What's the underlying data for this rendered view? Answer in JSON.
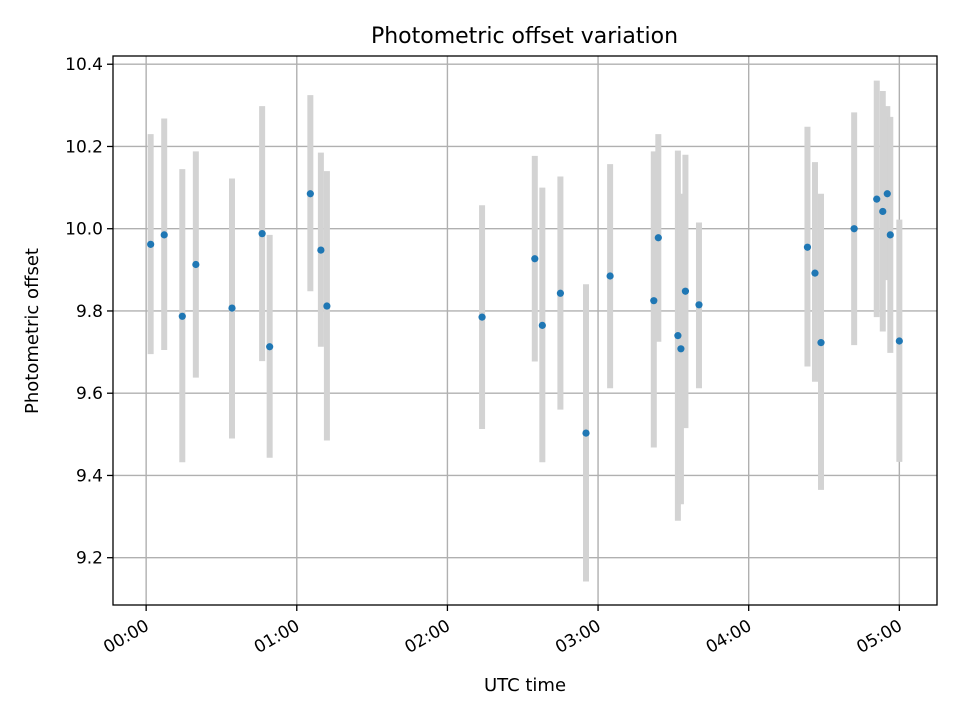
{
  "chart_data": {
    "type": "scatter",
    "title": "Photometric offset variation",
    "xlabel": "UTC time",
    "ylabel": "Photometric offset",
    "xlim": [
      -0.22,
      5.25
    ],
    "ylim": [
      9.085,
      10.42
    ],
    "grid": true,
    "x_ticks": [
      {
        "value": 0,
        "label": "00:00"
      },
      {
        "value": 1,
        "label": "01:00"
      },
      {
        "value": 2,
        "label": "02:00"
      },
      {
        "value": 3,
        "label": "03:00"
      },
      {
        "value": 4,
        "label": "04:00"
      },
      {
        "value": 5,
        "label": "05:00"
      }
    ],
    "y_ticks": [
      {
        "value": 9.2,
        "label": "9.2"
      },
      {
        "value": 9.4,
        "label": "9.4"
      },
      {
        "value": 9.6,
        "label": "9.6"
      },
      {
        "value": 9.8,
        "label": "9.8"
      },
      {
        "value": 10.0,
        "label": "10.0"
      },
      {
        "value": 10.2,
        "label": "10.2"
      },
      {
        "value": 10.4,
        "label": "10.4"
      }
    ],
    "point_color": "#1f77b4",
    "errorbar_color": "#d3d3d3",
    "x_unit": "hours since 00:00 UTC",
    "series": [
      {
        "name": "offset",
        "points": [
          {
            "x": 0.03,
            "y": 9.962,
            "lo": 9.695,
            "hi": 10.23
          },
          {
            "x": 0.12,
            "y": 9.985,
            "lo": 9.705,
            "hi": 10.268
          },
          {
            "x": 0.24,
            "y": 9.787,
            "lo": 9.432,
            "hi": 10.145
          },
          {
            "x": 0.33,
            "y": 9.913,
            "lo": 9.638,
            "hi": 10.188
          },
          {
            "x": 0.57,
            "y": 9.807,
            "lo": 9.49,
            "hi": 10.122
          },
          {
            "x": 0.77,
            "y": 9.988,
            "lo": 9.678,
            "hi": 10.298
          },
          {
            "x": 0.82,
            "y": 9.713,
            "lo": 9.443,
            "hi": 9.985
          },
          {
            "x": 1.09,
            "y": 10.085,
            "lo": 9.848,
            "hi": 10.325
          },
          {
            "x": 1.16,
            "y": 9.948,
            "lo": 9.713,
            "hi": 10.185
          },
          {
            "x": 1.2,
            "y": 9.812,
            "lo": 9.485,
            "hi": 10.14
          },
          {
            "x": 2.23,
            "y": 9.785,
            "lo": 9.513,
            "hi": 10.057
          },
          {
            "x": 2.58,
            "y": 9.927,
            "lo": 9.677,
            "hi": 10.177
          },
          {
            "x": 2.63,
            "y": 9.765,
            "lo": 9.432,
            "hi": 10.1
          },
          {
            "x": 2.75,
            "y": 9.843,
            "lo": 9.56,
            "hi": 10.127
          },
          {
            "x": 2.92,
            "y": 9.503,
            "lo": 9.142,
            "hi": 9.865
          },
          {
            "x": 3.08,
            "y": 9.885,
            "lo": 9.612,
            "hi": 10.157
          },
          {
            "x": 3.37,
            "y": 9.825,
            "lo": 9.468,
            "hi": 10.188
          },
          {
            "x": 3.4,
            "y": 9.978,
            "lo": 9.725,
            "hi": 10.23
          },
          {
            "x": 3.53,
            "y": 9.74,
            "lo": 9.29,
            "hi": 10.19
          },
          {
            "x": 3.55,
            "y": 9.708,
            "lo": 9.33,
            "hi": 10.085
          },
          {
            "x": 3.58,
            "y": 9.848,
            "lo": 9.515,
            "hi": 10.18
          },
          {
            "x": 3.67,
            "y": 9.815,
            "lo": 9.612,
            "hi": 10.015
          },
          {
            "x": 4.39,
            "y": 9.955,
            "lo": 9.665,
            "hi": 10.248
          },
          {
            "x": 4.44,
            "y": 9.892,
            "lo": 9.628,
            "hi": 10.162
          },
          {
            "x": 4.48,
            "y": 9.723,
            "lo": 9.365,
            "hi": 10.085
          },
          {
            "x": 4.7,
            "y": 10.0,
            "lo": 9.717,
            "hi": 10.283
          },
          {
            "x": 4.85,
            "y": 10.072,
            "lo": 9.785,
            "hi": 10.36
          },
          {
            "x": 4.89,
            "y": 10.042,
            "lo": 9.75,
            "hi": 10.335
          },
          {
            "x": 4.92,
            "y": 10.085,
            "lo": 9.875,
            "hi": 10.298
          },
          {
            "x": 4.94,
            "y": 9.985,
            "lo": 9.698,
            "hi": 10.272
          },
          {
            "x": 5.0,
            "y": 9.727,
            "lo": 9.433,
            "hi": 10.022
          }
        ]
      }
    ]
  }
}
